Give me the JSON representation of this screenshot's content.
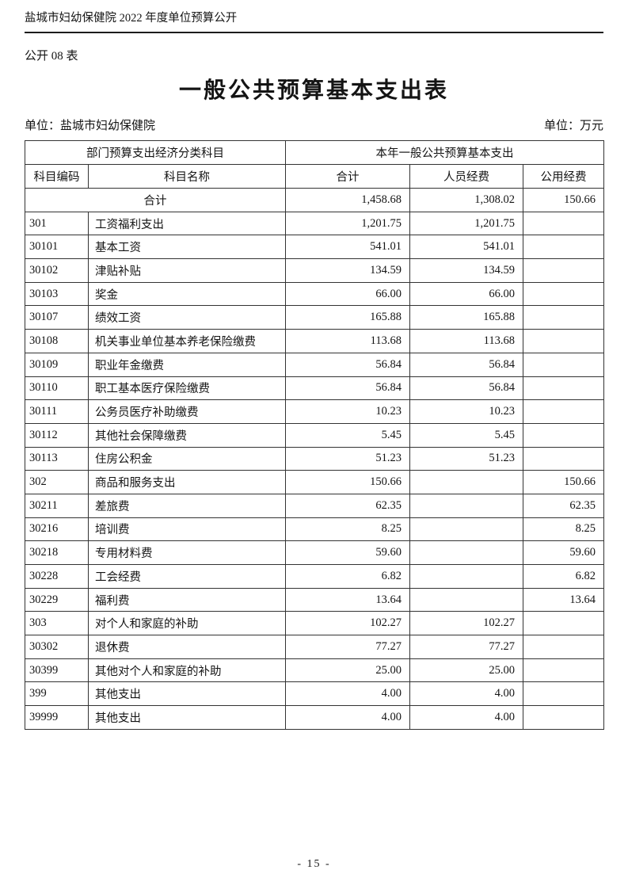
{
  "page": {
    "doc_header": "盐城市妇幼保健院 2022 年度单位预算公开",
    "form_label": "公开 08 表",
    "title": "一般公共预算基本支出表",
    "unit_left": "单位：盐城市妇幼保健院",
    "unit_right": "单位：万元",
    "page_number": "- 15 -"
  },
  "table": {
    "group_headers": {
      "left": "部门预算支出经济分类科目",
      "right": "本年一般公共预算基本支出"
    },
    "columns": {
      "code": "科目编码",
      "name": "科目名称",
      "total": "合计",
      "personnel": "人员经费",
      "public": "公用经费"
    },
    "total_row": {
      "label": "合计",
      "total": "1,458.68",
      "personnel": "1,308.02",
      "public": "150.66"
    },
    "rows": [
      {
        "code": "301",
        "name": "工资福利支出",
        "total": "1,201.75",
        "personnel": "1,201.75",
        "public": ""
      },
      {
        "code": "30101",
        "name": "基本工资",
        "total": "541.01",
        "personnel": "541.01",
        "public": ""
      },
      {
        "code": "30102",
        "name": "津贴补贴",
        "total": "134.59",
        "personnel": "134.59",
        "public": ""
      },
      {
        "code": "30103",
        "name": "奖金",
        "total": "66.00",
        "personnel": "66.00",
        "public": ""
      },
      {
        "code": "30107",
        "name": "绩效工资",
        "total": "165.88",
        "personnel": "165.88",
        "public": ""
      },
      {
        "code": "30108",
        "name": "机关事业单位基本养老保险缴费",
        "total": "113.68",
        "personnel": "113.68",
        "public": ""
      },
      {
        "code": "30109",
        "name": "职业年金缴费",
        "total": "56.84",
        "personnel": "56.84",
        "public": ""
      },
      {
        "code": "30110",
        "name": "职工基本医疗保险缴费",
        "total": "56.84",
        "personnel": "56.84",
        "public": ""
      },
      {
        "code": "30111",
        "name": "公务员医疗补助缴费",
        "total": "10.23",
        "personnel": "10.23",
        "public": ""
      },
      {
        "code": "30112",
        "name": "其他社会保障缴费",
        "total": "5.45",
        "personnel": "5.45",
        "public": ""
      },
      {
        "code": "30113",
        "name": "住房公积金",
        "total": "51.23",
        "personnel": "51.23",
        "public": ""
      },
      {
        "code": "302",
        "name": "商品和服务支出",
        "total": "150.66",
        "personnel": "",
        "public": "150.66"
      },
      {
        "code": "30211",
        "name": "差旅费",
        "total": "62.35",
        "personnel": "",
        "public": "62.35"
      },
      {
        "code": "30216",
        "name": "培训费",
        "total": "8.25",
        "personnel": "",
        "public": "8.25"
      },
      {
        "code": "30218",
        "name": "专用材料费",
        "total": "59.60",
        "personnel": "",
        "public": "59.60"
      },
      {
        "code": "30228",
        "name": "工会经费",
        "total": "6.82",
        "personnel": "",
        "public": "6.82"
      },
      {
        "code": "30229",
        "name": "福利费",
        "total": "13.64",
        "personnel": "",
        "public": "13.64"
      },
      {
        "code": "303",
        "name": "对个人和家庭的补助",
        "total": "102.27",
        "personnel": "102.27",
        "public": ""
      },
      {
        "code": "30302",
        "name": "退休费",
        "total": "77.27",
        "personnel": "77.27",
        "public": ""
      },
      {
        "code": "30399",
        "name": "其他对个人和家庭的补助",
        "total": "25.00",
        "personnel": "25.00",
        "public": ""
      },
      {
        "code": "399",
        "name": "其他支出",
        "total": "4.00",
        "personnel": "4.00",
        "public": ""
      },
      {
        "code": "39999",
        "name": "其他支出",
        "total": "4.00",
        "personnel": "4.00",
        "public": ""
      }
    ]
  }
}
